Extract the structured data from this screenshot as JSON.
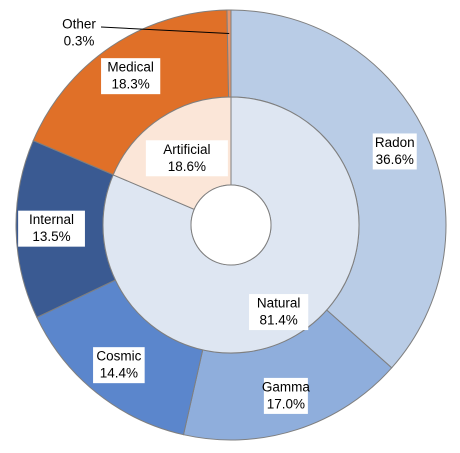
{
  "chart_data": {
    "type": "pie",
    "subtype": "nested-donut",
    "title": "",
    "inner_ring": [
      {
        "label": "Natural",
        "value": 81.4,
        "display": "81.4%",
        "color": "#dee6f2"
      },
      {
        "label": "Artificial",
        "value": 18.6,
        "display": "18.6%",
        "color": "#fbe6d8"
      }
    ],
    "outer_ring": [
      {
        "label": "Radon",
        "value": 36.6,
        "display": "36.6%",
        "color": "#b9cce6"
      },
      {
        "label": "Gamma",
        "value": 17.0,
        "display": "17.0%",
        "color": "#8faedc"
      },
      {
        "label": "Cosmic",
        "value": 14.4,
        "display": "14.4%",
        "color": "#5b86cc"
      },
      {
        "label": "Internal",
        "value": 13.5,
        "display": "13.5%",
        "color": "#3a5a92"
      },
      {
        "label": "Medical",
        "value": 18.3,
        "display": "18.3%",
        "color": "#e07028"
      },
      {
        "label": "Other",
        "value": 0.3,
        "display": "0.3%",
        "color": "#e8956a"
      }
    ]
  }
}
